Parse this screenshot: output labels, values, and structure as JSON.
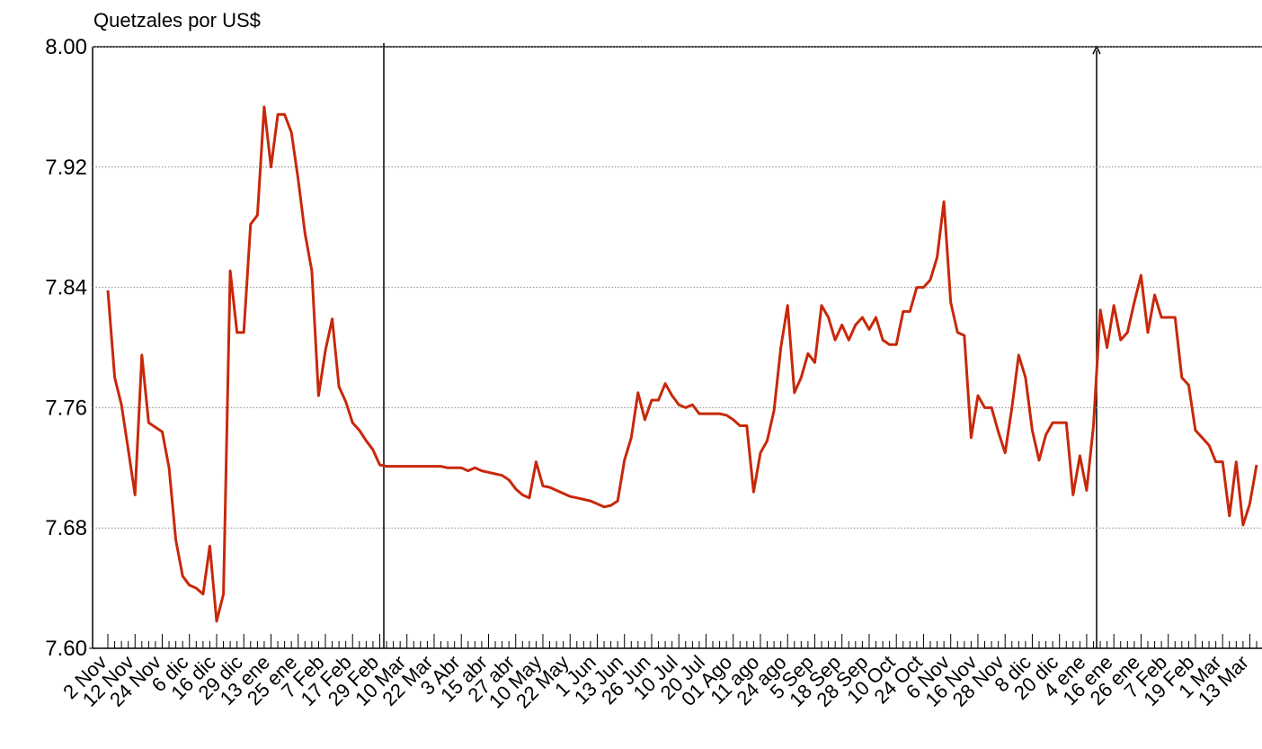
{
  "chart_data": {
    "type": "line",
    "y_label": "Quetzales por US$",
    "categories": [
      "2 Nov",
      null,
      null,
      null,
      "12 Nov",
      null,
      null,
      null,
      "24 Nov",
      null,
      null,
      null,
      "6 dic",
      null,
      null,
      null,
      "16 dic",
      null,
      null,
      null,
      "29 dic",
      null,
      null,
      null,
      "13 ene",
      null,
      null,
      null,
      "25 ene",
      null,
      null,
      null,
      "7 Feb",
      null,
      null,
      null,
      "17 Feb",
      null,
      null,
      null,
      "29 Feb",
      null,
      null,
      null,
      "10 Mar",
      null,
      null,
      null,
      "22 Mar",
      null,
      null,
      null,
      "3 Abr",
      null,
      null,
      null,
      "15 abr",
      null,
      null,
      null,
      "27 abr",
      null,
      null,
      null,
      "10 May",
      null,
      null,
      null,
      "22 May",
      null,
      null,
      null,
      "1 Jun",
      null,
      null,
      null,
      "13 Jun",
      null,
      null,
      null,
      "26 Jun",
      null,
      null,
      null,
      "10 Jul",
      null,
      null,
      null,
      "20 Jul",
      null,
      null,
      null,
      "01 Ago",
      null,
      null,
      null,
      "11 ago",
      null,
      null,
      null,
      "24 ago",
      null,
      null,
      null,
      "5 Sep",
      null,
      null,
      null,
      "18 Sep",
      null,
      null,
      null,
      "28 Sep",
      null,
      null,
      null,
      "10 Oct",
      null,
      null,
      null,
      "24 Oct",
      null,
      null,
      null,
      "6 Nov",
      null,
      null,
      null,
      "16 Nov",
      null,
      null,
      null,
      "28 Nov",
      null,
      null,
      null,
      "8 dic",
      null,
      null,
      null,
      "20 dic",
      null,
      null,
      null,
      "4 ene",
      null,
      null,
      null,
      "16 ene",
      null,
      null,
      null,
      "26 ene",
      null,
      null,
      null,
      "7 Feb",
      null,
      null,
      null,
      "19 Feb",
      null,
      null,
      null,
      "1 Mar",
      null,
      null,
      null,
      "13 Mar",
      null
    ],
    "series": [
      {
        "color": "#c8280a",
        "values": [
          7.838,
          7.78,
          7.762,
          7.732,
          7.702,
          7.795,
          7.75,
          7.747,
          7.744,
          7.72,
          7.672,
          7.648,
          7.642,
          7.64,
          7.636,
          7.668,
          7.618,
          7.636,
          7.851,
          7.81,
          7.81,
          7.882,
          7.888,
          7.96,
          7.92,
          7.955,
          7.955,
          7.943,
          7.912,
          7.876,
          7.851,
          7.768,
          7.798,
          7.819,
          7.774,
          7.764,
          7.75,
          7.745,
          7.738,
          7.732,
          7.722,
          7.721,
          7.721,
          7.721,
          7.721,
          7.721,
          7.721,
          7.721,
          7.721,
          7.721,
          7.72,
          7.72,
          7.72,
          7.718,
          7.72,
          7.718,
          7.717,
          7.716,
          7.715,
          7.712,
          7.706,
          7.702,
          7.7,
          7.724,
          7.708,
          7.707,
          7.705,
          7.703,
          7.701,
          7.7,
          7.699,
          7.698,
          7.696,
          7.694,
          7.695,
          7.698,
          7.725,
          7.74,
          7.77,
          7.752,
          7.765,
          7.765,
          7.776,
          7.768,
          7.762,
          7.76,
          7.762,
          7.756,
          7.756,
          7.756,
          7.756,
          7.755,
          7.752,
          7.748,
          7.748,
          7.704,
          7.73,
          7.738,
          7.758,
          7.8,
          7.828,
          7.77,
          7.78,
          7.796,
          7.79,
          7.828,
          7.82,
          7.805,
          7.815,
          7.805,
          7.815,
          7.82,
          7.812,
          7.82,
          7.805,
          7.802,
          7.802,
          7.824,
          7.824,
          7.84,
          7.84,
          7.845,
          7.86,
          7.897,
          7.83,
          7.81,
          7.808,
          7.74,
          7.768,
          7.76,
          7.76,
          7.744,
          7.73,
          7.76,
          7.795,
          7.78,
          7.745,
          7.725,
          7.742,
          7.75,
          7.75,
          7.75,
          7.702,
          7.728,
          7.705,
          7.748,
          7.825,
          7.8,
          7.828,
          7.805,
          7.81,
          7.83,
          7.848,
          7.81,
          7.835,
          7.82,
          7.82,
          7.82,
          7.78,
          7.775,
          7.745,
          7.74,
          7.735,
          7.724,
          7.724,
          7.688,
          7.724,
          7.682,
          7.696,
          7.722
        ]
      }
    ],
    "ylim": [
      7.6,
      8.0
    ],
    "yticks": [
      {
        "value": 7.6,
        "label": "7.60"
      },
      7.68,
      7.76,
      7.84,
      7.92,
      {
        "value": 8.0,
        "label": "8.00"
      }
    ],
    "grid": true
  }
}
